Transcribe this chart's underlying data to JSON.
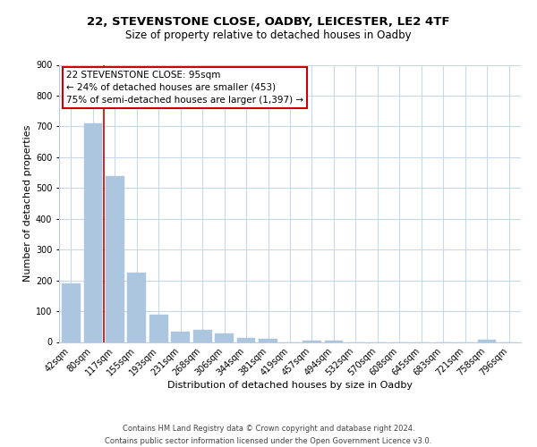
{
  "title1": "22, STEVENSTONE CLOSE, OADBY, LEICESTER, LE2 4TF",
  "title2": "Size of property relative to detached houses in Oadby",
  "xlabel": "Distribution of detached houses by size in Oadby",
  "ylabel": "Number of detached properties",
  "footer1": "Contains HM Land Registry data © Crown copyright and database right 2024.",
  "footer2": "Contains public sector information licensed under the Open Government Licence v3.0.",
  "annotation_line1": "22 STEVENSTONE CLOSE: 95sqm",
  "annotation_line2": "← 24% of detached houses are smaller (453)",
  "annotation_line3": "75% of semi-detached houses are larger (1,397) →",
  "bar_labels": [
    "42sqm",
    "80sqm",
    "117sqm",
    "155sqm",
    "193sqm",
    "231sqm",
    "268sqm",
    "306sqm",
    "344sqm",
    "381sqm",
    "419sqm",
    "457sqm",
    "494sqm",
    "532sqm",
    "570sqm",
    "608sqm",
    "645sqm",
    "683sqm",
    "721sqm",
    "758sqm",
    "796sqm"
  ],
  "bar_values": [
    190,
    710,
    540,
    225,
    90,
    33,
    40,
    27,
    12,
    10,
    0,
    5,
    3,
    0,
    0,
    0,
    0,
    0,
    0,
    8,
    0
  ],
  "bar_color": "#adc6e0",
  "bar_edgecolor": "#adc6e0",
  "property_line_x": 1.5,
  "property_line_color": "#cc0000",
  "annotation_box_edgecolor": "#cc0000",
  "ylim": [
    0,
    900
  ],
  "yticks": [
    0,
    100,
    200,
    300,
    400,
    500,
    600,
    700,
    800,
    900
  ],
  "grid_color": "#c8d8e8",
  "background_color": "#ffffff",
  "title_fontsize": 9.5,
  "subtitle_fontsize": 8.5,
  "axis_label_fontsize": 8,
  "tick_fontsize": 7,
  "annotation_fontsize": 7.5,
  "footer_fontsize": 6
}
